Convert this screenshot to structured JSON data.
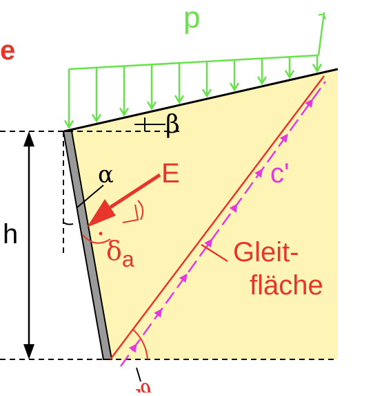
{
  "diagram": {
    "labels": {
      "partial_top_left": "e",
      "load": "p",
      "slope_angle": "β",
      "wall_angle": "α",
      "earth_pressure": "E",
      "cohesion": "c'",
      "height": "h",
      "wall_friction": "δ",
      "wall_friction_sub": "a",
      "slip_surface_line1": "Gleit-",
      "slip_surface_line2": "fläche",
      "slip_angle": "ϑ"
    },
    "colors": {
      "soil_fill": "#fdf4b5",
      "load_arrows": "#66e34a",
      "pressure_red": "#e6362c",
      "slip_magenta": "#e239e0",
      "wall_gray": "#9a9a9a"
    }
  }
}
